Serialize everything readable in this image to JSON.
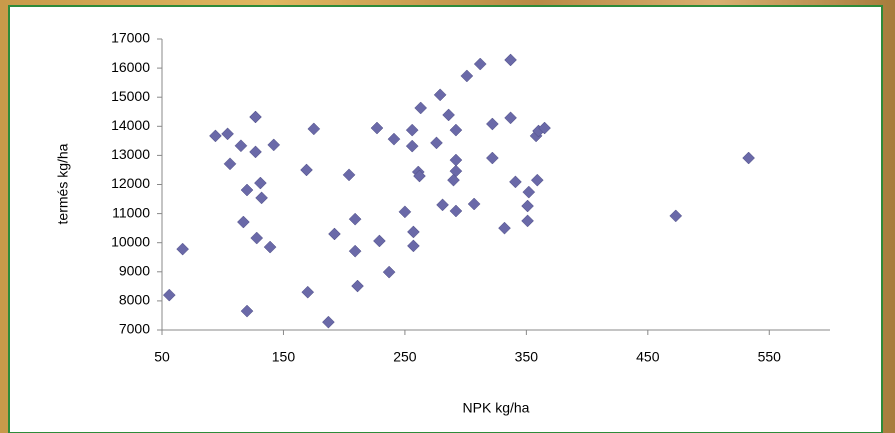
{
  "chart_data": {
    "type": "scatter",
    "x_label": "NPK kg/ha",
    "y_label": "termés kg/ha",
    "color": "#6a69a8",
    "marker": "diamond",
    "xlim": [
      50,
      600
    ],
    "xticks": [
      50,
      150,
      250,
      350,
      450,
      550
    ],
    "ylim": [
      7000,
      17000
    ],
    "yticks": [
      7000,
      8000,
      9000,
      10000,
      11000,
      12000,
      13000,
      14000,
      15000,
      16000,
      17000
    ],
    "x": [
      56,
      67,
      94,
      104,
      106,
      115,
      117,
      120,
      127,
      127,
      128,
      131,
      132,
      120,
      139,
      142,
      169,
      170,
      175,
      187,
      192,
      204,
      209,
      209,
      211,
      227,
      229,
      237,
      241,
      250,
      256,
      256,
      257,
      257,
      261,
      262,
      263,
      276,
      279,
      281,
      286,
      292,
      292,
      292,
      290,
      292,
      301,
      307,
      312,
      322,
      322,
      332,
      337,
      337,
      341,
      351,
      351,
      352,
      358,
      360,
      359,
      365,
      473,
      533
    ],
    "values": [
      8200,
      9780,
      13670,
      13740,
      12710,
      13330,
      10710,
      11810,
      14320,
      13120,
      10160,
      12050,
      11540,
      7650,
      9850,
      13360,
      12500,
      8300,
      13910,
      7270,
      10300,
      12330,
      10810,
      9710,
      8510,
      13940,
      10060,
      8990,
      13560,
      11060,
      13870,
      13320,
      10370,
      9890,
      12430,
      12290,
      14630,
      13430,
      15080,
      11300,
      14390,
      13870,
      12840,
      12460,
      12150,
      11090,
      15730,
      11330,
      16140,
      14080,
      12910,
      10500,
      16280,
      14290,
      12090,
      11260,
      10750,
      11740,
      13670,
      13840,
      12150,
      13940,
      10920,
      12910
    ]
  }
}
